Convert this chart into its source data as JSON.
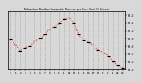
{
  "title": "Milwaukee Weather Barometric Pressure per Hour (Last 24 Hours)",
  "background_color": "#d8d8d8",
  "plot_bg_color": "#d8d8d8",
  "grid_color": "#aaaaaa",
  "line_color": "#ff0000",
  "marker_color": "#000000",
  "ylim": [
    29.5,
    30.25
  ],
  "ytick_values": [
    29.5,
    29.6,
    29.7,
    29.8,
    29.9,
    30.0,
    30.1,
    30.2
  ],
  "ytick_labels": [
    "29.5",
    "29.6",
    "29.7",
    "29.8",
    "29.9",
    "30.0",
    "30.1",
    "30.2"
  ],
  "hours": [
    0,
    1,
    2,
    3,
    4,
    5,
    6,
    7,
    8,
    9,
    10,
    11,
    12,
    13,
    14,
    15,
    16,
    17,
    18,
    19,
    20,
    21,
    22,
    23
  ],
  "pressure": [
    29.89,
    29.82,
    29.74,
    29.78,
    29.8,
    29.87,
    29.9,
    29.95,
    30.02,
    30.05,
    30.1,
    30.15,
    30.17,
    30.1,
    29.95,
    29.88,
    29.85,
    29.82,
    29.75,
    29.72,
    29.68,
    29.6,
    29.55,
    29.52
  ],
  "xlim": [
    -0.5,
    23.5
  ],
  "xtick_positions": [
    0,
    1,
    2,
    3,
    4,
    5,
    6,
    7,
    8,
    9,
    10,
    11,
    12,
    13,
    14,
    15,
    16,
    17,
    18,
    19,
    20,
    21,
    22,
    23
  ],
  "xtick_labels": [
    "0",
    "1",
    "2",
    "3",
    "4",
    "5",
    "6",
    "7",
    "8",
    "9",
    "10",
    "11",
    "12",
    "13",
    "14",
    "15",
    "16",
    "17",
    "18",
    "19",
    "20",
    "21",
    "22",
    "23"
  ]
}
